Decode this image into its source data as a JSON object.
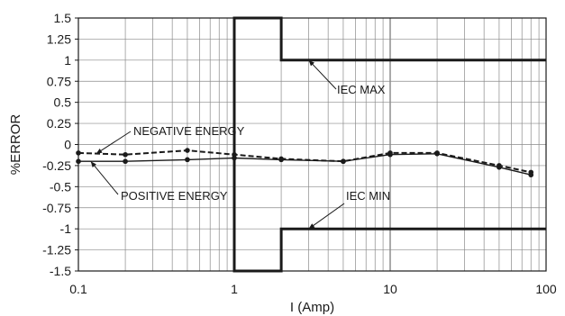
{
  "chart_data": {
    "type": "line",
    "title": "",
    "xlabel": "I (Amp)",
    "ylabel": "%ERROR",
    "xscale": "log",
    "xlim": [
      0.1,
      100
    ],
    "ylim": [
      -1.5,
      1.5
    ],
    "grid": true,
    "legend": "none",
    "x_ticks": [
      "0.1",
      "1",
      "10",
      "100"
    ],
    "y_ticks": [
      "1.5",
      "1.25",
      "1",
      "0.75",
      "0.5",
      "0.25",
      "0",
      "-0.25",
      "-0.5",
      "-0.75",
      "-1",
      "-1.25",
      "-1.5"
    ],
    "series": [
      {
        "name": "NEGATIVE ENERGY",
        "style": "dashed",
        "x": [
          0.1,
          0.2,
          0.5,
          1,
          2,
          5,
          10,
          20,
          50,
          80
        ],
        "y": [
          -0.1,
          -0.12,
          -0.07,
          -0.12,
          -0.17,
          -0.2,
          -0.1,
          -0.1,
          -0.25,
          -0.33
        ]
      },
      {
        "name": "POSITIVE ENERGY",
        "style": "solid",
        "x": [
          0.1,
          0.2,
          0.5,
          1,
          2,
          5,
          10,
          20,
          50,
          80
        ],
        "y": [
          -0.2,
          -0.2,
          -0.18,
          -0.16,
          -0.18,
          -0.2,
          -0.12,
          -0.11,
          -0.27,
          -0.36
        ]
      },
      {
        "name": "IEC MAX",
        "style": "limit",
        "x": [
          1,
          1,
          2,
          2,
          100
        ],
        "y": [
          -1.5,
          1.5,
          1.5,
          1,
          1
        ]
      },
      {
        "name": "IEC MIN",
        "style": "limit",
        "x": [
          1,
          1,
          2,
          2,
          100
        ],
        "y": [
          1.5,
          -1.5,
          -1.5,
          -1,
          -1
        ]
      }
    ],
    "annotations": [
      {
        "text": "NEGATIVE ENERGY",
        "target_x": 0.13,
        "target_y": -0.11
      },
      {
        "text": "POSITIVE ENERGY",
        "target_x": 0.12,
        "target_y": -0.2
      },
      {
        "text": "IEC MAX",
        "target_x": 3.0,
        "target_y": 1
      },
      {
        "text": "IEC MIN",
        "target_x": 3.0,
        "target_y": -1
      }
    ]
  }
}
